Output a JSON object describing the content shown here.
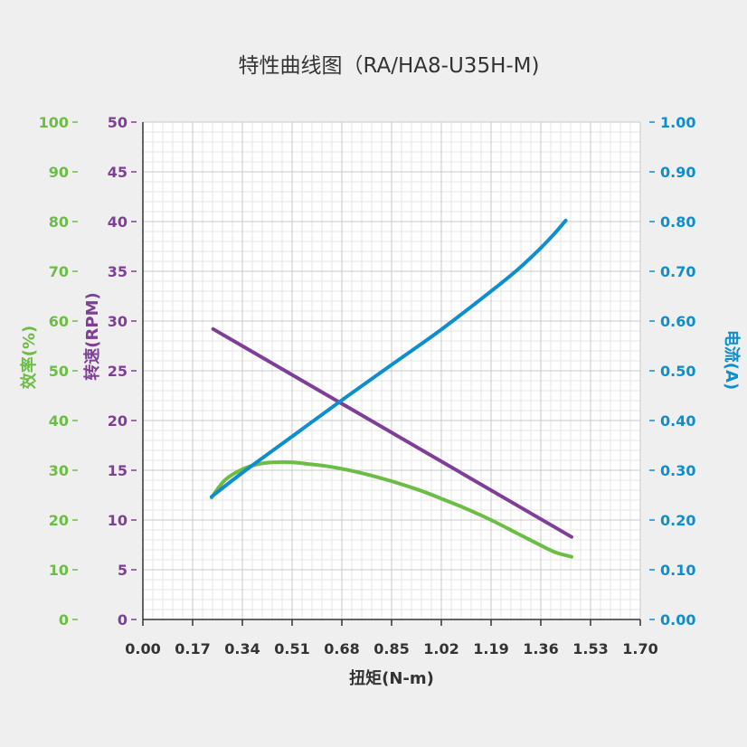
{
  "chart_data": {
    "type": "line",
    "title": "特性曲线图（RA/HA8-U35H-M)",
    "xlabel": "扭矩(N-m)",
    "xlim": [
      0,
      1.7
    ],
    "x_ticks": [
      "0.00",
      "0.17",
      "0.34",
      "0.51",
      "0.68",
      "0.85",
      "1.02",
      "1.19",
      "1.36",
      "1.53",
      "1.70"
    ],
    "grid": true,
    "axes": {
      "efficiency": {
        "label": "效率(%)",
        "color": "#6cbd45",
        "ylim": [
          0,
          100
        ],
        "ticks": [
          "0",
          "10",
          "20",
          "30",
          "40",
          "50",
          "60",
          "70",
          "80",
          "90",
          "100"
        ]
      },
      "speed": {
        "label": "转速(RPM)",
        "color": "#7f3f98",
        "ylim": [
          0,
          50
        ],
        "ticks": [
          "0",
          "5",
          "10",
          "15",
          "20",
          "25",
          "30",
          "35",
          "40",
          "45",
          "50"
        ]
      },
      "current": {
        "label": "电流(A)",
        "color": "#0d8ecf",
        "ylim": [
          0,
          1.0
        ],
        "ticks": [
          "0.00",
          "0.10",
          "0.20",
          "0.30",
          "0.40",
          "0.50",
          "0.60",
          "0.70",
          "0.80",
          "0.90",
          "1.00"
        ]
      }
    },
    "series": [
      {
        "axis": "efficiency",
        "color": "#6cbd45",
        "x": [
          0.235,
          0.28,
          0.34,
          0.4,
          0.45,
          0.51,
          0.56,
          0.62,
          0.68,
          0.75,
          0.85,
          0.95,
          1.02,
          1.1,
          1.19,
          1.28,
          1.36,
          1.41,
          1.465
        ],
        "y": [
          24.5,
          28.0,
          30.2,
          31.3,
          31.6,
          31.6,
          31.3,
          30.9,
          30.3,
          29.4,
          27.8,
          25.9,
          24.3,
          22.4,
          20.0,
          17.3,
          14.9,
          13.5,
          12.6
        ]
      },
      {
        "axis": "speed",
        "color": "#7f3f98",
        "x": [
          0.24,
          1.465
        ],
        "y": [
          29.2,
          8.3
        ]
      },
      {
        "axis": "current",
        "color": "#0d8ecf",
        "x": [
          0.235,
          0.34,
          0.51,
          0.68,
          0.85,
          1.02,
          1.19,
          1.28,
          1.36,
          1.41,
          1.445
        ],
        "y": [
          0.247,
          0.295,
          0.368,
          0.441,
          0.512,
          0.583,
          0.66,
          0.703,
          0.747,
          0.778,
          0.802
        ]
      }
    ]
  }
}
